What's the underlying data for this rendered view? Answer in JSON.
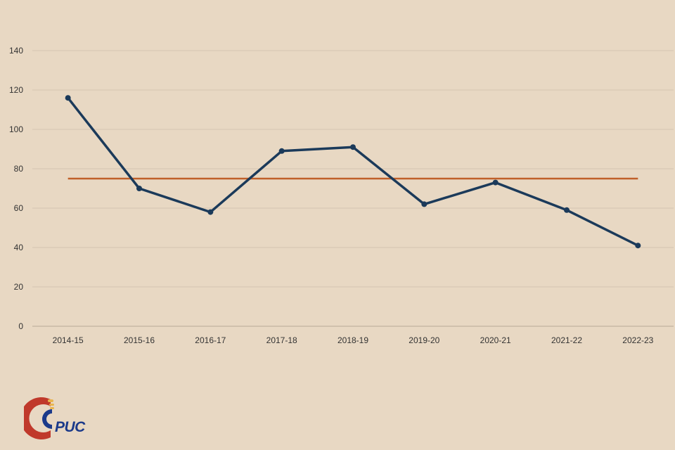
{
  "chart_data": {
    "type": "line",
    "title": "",
    "xlabel": "",
    "ylabel": "",
    "categories": [
      "2014-15",
      "2015-16",
      "2016-17",
      "2017-18",
      "2018-19",
      "2019-20",
      "2020-21",
      "2021-22",
      "2022-23"
    ],
    "series": [
      {
        "values": [
          116,
          70,
          58,
          89,
          91,
          62,
          73,
          59,
          41
        ],
        "color": "#1b3a5a",
        "markers": true
      }
    ],
    "reference_line": {
      "value": 75,
      "color": "#c0602a"
    },
    "ylim": [
      0,
      140
    ],
    "yticks": [
      0,
      20,
      40,
      60,
      80,
      100,
      120,
      140
    ],
    "grid": true,
    "legend": "none"
  },
  "logo": {
    "text": "PUC",
    "colors": {
      "outer": "#c0392b",
      "inner": "#1b3a8a",
      "accent": "#e9b44c"
    }
  }
}
